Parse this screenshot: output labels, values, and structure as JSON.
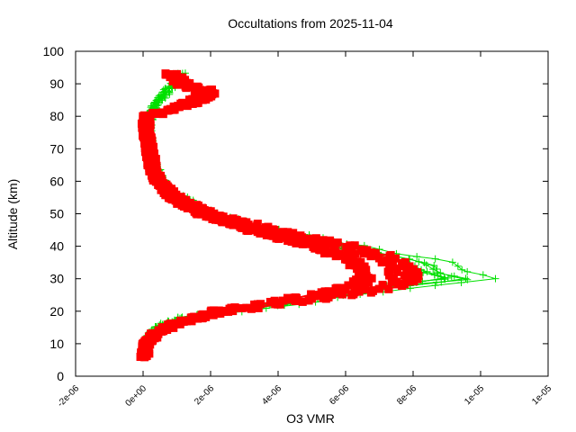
{
  "chart_data": {
    "type": "scatter",
    "title": "Occultations from 2025-11-04",
    "xlabel": "O3 VMR",
    "ylabel": "Altitude (km)",
    "xlim": [
      -2e-06,
      1.2e-05
    ],
    "ylim": [
      0,
      100
    ],
    "xticks": [
      -2e-06,
      0,
      2e-06,
      4e-06,
      6e-06,
      8e-06,
      1e-05,
      1.2e-05
    ],
    "xtick_labels": [
      "-2e-06",
      "0e+00",
      "2e-06",
      "4e-06",
      "6e-06",
      "8e-06",
      "1e-05",
      "1e-05"
    ],
    "yticks": [
      0,
      10,
      20,
      30,
      40,
      50,
      60,
      70,
      80,
      90,
      100
    ],
    "ytick_labels": [
      "0",
      "10",
      "20",
      "30",
      "40",
      "50",
      "60",
      "70",
      "80",
      "90",
      "100"
    ],
    "grid": false,
    "legend": null,
    "colors": {
      "series_green": "#00e000",
      "series_red": "#ff0000",
      "axis": "#000000"
    },
    "series": [
      {
        "name": "profiles-green (line + plus markers)",
        "marker": "plus",
        "color": "#00e000",
        "altitude_km": [
          6,
          10,
          15,
          18,
          20,
          22,
          25,
          28,
          30,
          32,
          35,
          37,
          40,
          45,
          50,
          55,
          60,
          65,
          70,
          75,
          80,
          85,
          90,
          94
        ],
        "o3_vmr": [
          1e-07,
          1.5e-07,
          4e-07,
          1.2e-06,
          2.8e-06,
          4.5e-06,
          6.5e-06,
          8.5e-06,
          1.04e-05,
          9.5e-06,
          9e-06,
          8e-06,
          6.5e-06,
          4e-06,
          2.2e-06,
          1.2e-06,
          6e-07,
          3.5e-07,
          2e-07,
          1.5e-07,
          2e-07,
          5e-07,
          1e-06,
          1.2e-06
        ]
      },
      {
        "name": "profiles-red (square markers)",
        "marker": "square",
        "color": "#ff0000",
        "altitude_km": [
          6,
          10,
          13,
          16,
          20,
          22,
          25,
          28,
          30,
          32,
          35,
          37,
          40,
          45,
          50,
          55,
          60,
          65,
          70,
          75,
          80,
          83,
          86,
          88,
          90,
          94
        ],
        "o3_vmr": [
          5e-08,
          1e-07,
          4e-07,
          1e-06,
          2.5e-06,
          4e-06,
          6e-06,
          7.5e-06,
          7.8e-06,
          7.7e-06,
          7.5e-06,
          7e-06,
          6e-06,
          3.8e-06,
          2e-06,
          1e-06,
          5e-07,
          3e-07,
          2e-07,
          1e-07,
          1e-07,
          1.2e-06,
          2e-06,
          2e-06,
          1.3e-06,
          8e-07
        ]
      }
    ]
  }
}
